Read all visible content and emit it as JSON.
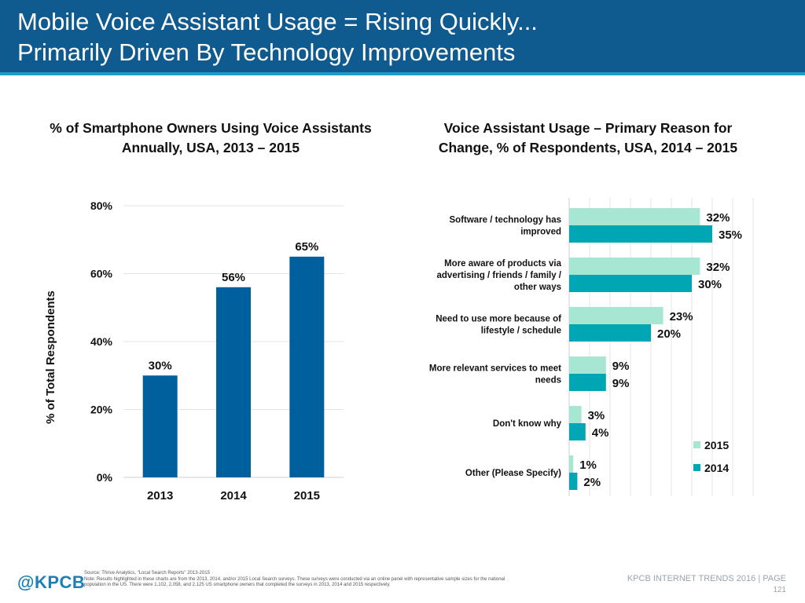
{
  "header": {
    "title_line1": "Mobile Voice Assistant Usage = Rising Quickly...",
    "title_line2": "Primarily Driven By Technology Improvements"
  },
  "left_chart": {
    "title_line1": "% of Smartphone Owners Using Voice Assistants",
    "title_line2": "Annually, USA, 2013 – 2015"
  },
  "right_chart": {
    "title_line1": "Voice Assistant Usage – Primary Reason for",
    "title_line2": "Change, % of Respondents, USA, 2014 – 2015"
  },
  "chart_data": [
    {
      "type": "bar",
      "title": "% of Smartphone Owners Using Voice Assistants Annually, USA, 2013 – 2015",
      "categories": [
        "2013",
        "2014",
        "2015"
      ],
      "values": [
        30,
        56,
        65
      ],
      "data_labels": [
        "30%",
        "56%",
        "65%"
      ],
      "ylabel": "% of Total Respondents",
      "ylim": [
        0,
        80
      ],
      "yticks": [
        "0%",
        "20%",
        "40%",
        "60%",
        "80%"
      ],
      "ytick_values": [
        0,
        20,
        40,
        60,
        80
      ],
      "grid": true,
      "colors": [
        "#00609e"
      ]
    },
    {
      "type": "bar",
      "orientation": "horizontal",
      "title": "Voice Assistant Usage – Primary Reason for Change, % of Respondents, USA, 2014 – 2015",
      "categories": [
        [
          "Software / technology has",
          "improved"
        ],
        [
          "More aware of products via",
          "advertising / friends / family /",
          "other ways"
        ],
        [
          "Need to use more because of",
          "lifestyle / schedule"
        ],
        [
          "More relevant services to meet",
          "needs"
        ],
        [
          "Don't know why"
        ],
        [
          "Other (Please Specify)"
        ]
      ],
      "series": [
        {
          "name": "2015",
          "values": [
            32,
            32,
            23,
            9,
            3,
            1
          ],
          "labels": [
            "32%",
            "32%",
            "23%",
            "9%",
            "3%",
            "1%"
          ],
          "color": "#a8e6d4"
        },
        {
          "name": "2014",
          "values": [
            35,
            30,
            20,
            9,
            4,
            2
          ],
          "labels": [
            "35%",
            "30%",
            "20%",
            "9%",
            "4%",
            "2%"
          ],
          "color": "#00a6b4"
        }
      ],
      "xlim": [
        0,
        45
      ],
      "grid": true,
      "legend_position": "bottom-right"
    }
  ],
  "footer": {
    "logo": "@KPCB",
    "source_line1": "Source: Thrive Analytics, \"Local Search Reports\" 2013-2015",
    "source_line2": "Note: Results highlighted in these charts are from the 2013, 2014, and/or 2015 Local Search surveys. These surveys were conducted via an online panel with representative sample sizes for the national",
    "source_line3": "population in the US. There were 1,102, 2,058, and 2,125 US smartphone owners that completed the surveys in 2013, 2014 and 2015 respectively.",
    "page_label": "KPCB INTERNET TRENDS 2016  |  PAGE",
    "page_number": "121"
  }
}
